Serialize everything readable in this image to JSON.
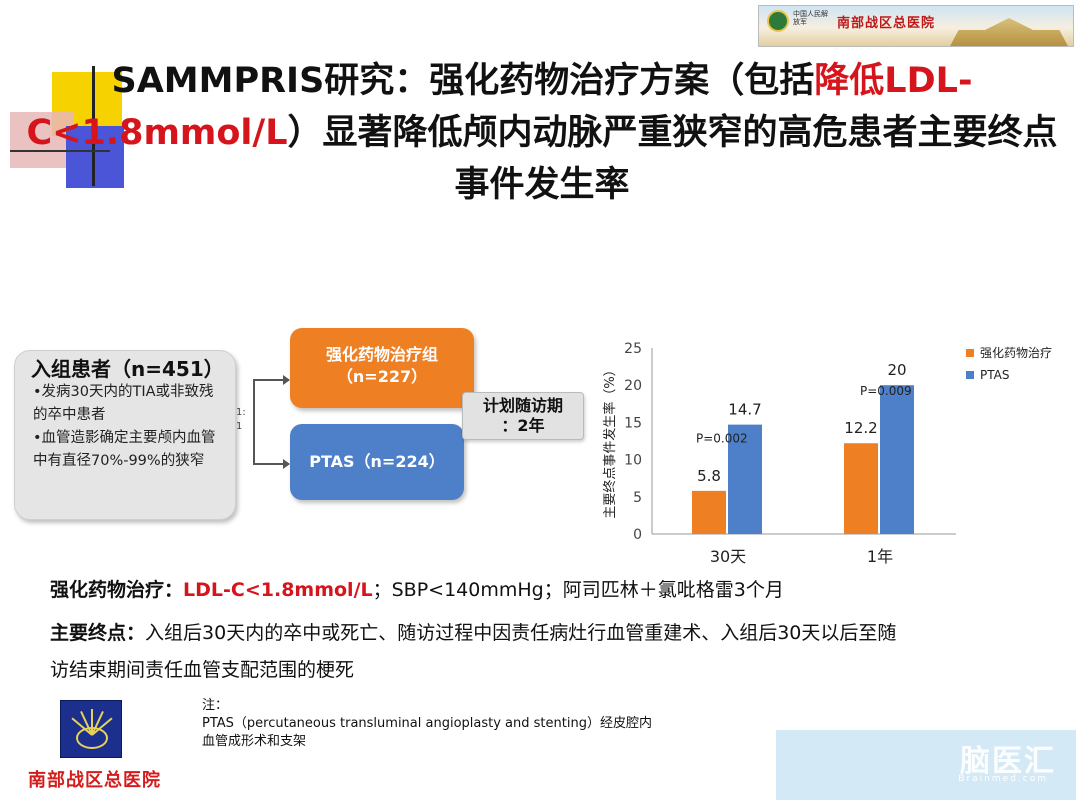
{
  "banner": {
    "hospital_name": "南部战区总医院",
    "sub_text": "中国人民解放军"
  },
  "title": {
    "part1": "SAMMPRIS研究：强化药物治疗方案（包括",
    "highlight": "降低LDL-C<1.8mmol/L",
    "part2": "）显著降低颅内动脉严重狭窄的高危患者主要终点事件发生率"
  },
  "patients": {
    "title": "入组患者（n=451）",
    "items": [
      "•发病30天内的TIA或非致残的卒中患者",
      "•血管造影确定主要颅内血管中有直径70%-99%的狭窄"
    ],
    "ratio": "1:1"
  },
  "arms": {
    "intensive_label": "强化药物治疗组",
    "intensive_n": "（n=227）",
    "ptas_label": "PTAS（n=224）"
  },
  "followup": {
    "line1": "计划随访期",
    "line2": "：2年"
  },
  "chart_data": {
    "type": "bar",
    "categories": [
      "30天",
      "1年"
    ],
    "series": [
      {
        "name": "强化药物治疗",
        "values": [
          5.8,
          12.2
        ],
        "color": "#ee7f22"
      },
      {
        "name": "PTAS",
        "values": [
          14.7,
          20
        ],
        "color": "#4d80c8"
      }
    ],
    "value_labels": [
      [
        "5.8",
        "12.2"
      ],
      [
        "14.7",
        "20"
      ]
    ],
    "ylabel": "主要终点事件发生率（%）",
    "ylim": [
      0,
      25
    ],
    "yticks": [
      0,
      5,
      10,
      15,
      20,
      25
    ],
    "ytick_labels": [
      "0",
      "5",
      "10",
      "15",
      "20",
      "25"
    ],
    "annotations": [
      "P=0.002",
      "P=0.009"
    ],
    "legend_position": "top-right",
    "grid": false
  },
  "text": {
    "line1_label": "强化药物治疗：",
    "line1_red": "LDL-C<1.8mmol/L",
    "line1_rest": "；SBP<140mmHg；阿司匹林＋氯吡格雷3个月",
    "line2_label": "主要终点：",
    "line2_rest": "入组后30天内的卒中或死亡、随访过程中因责任病灶行血管重建术、入组后30天以后至随",
    "line3": "访结束期间责任血管支配范围的梗死"
  },
  "note": {
    "label": "注：",
    "line1": "PTAS（percutaneous transluminal angioplasty and stenting）经皮腔内",
    "line2": "血管成形术和支架"
  },
  "footer": {
    "hospital_name": "南部战区总医院"
  },
  "watermark": {
    "text": "脑医汇",
    "sub": "Brainmed.com"
  }
}
